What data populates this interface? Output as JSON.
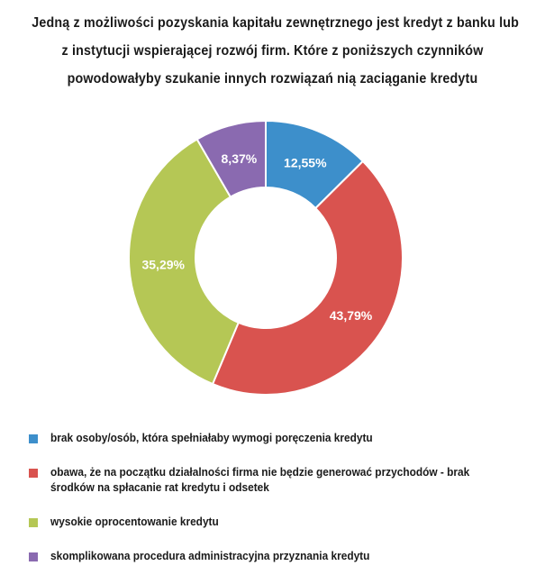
{
  "title_lines": [
    "Jedną z możliwości pozyskania kapitału zewnętrznego jest kredyt z banku lub",
    "z instytucji wspierającej rozwój firm. Które z poniższych czynników",
    "powodowałyby szukanie innych rozwiązań nią zaciąganie kredytu"
  ],
  "chart_data": {
    "type": "pie",
    "donut": true,
    "categories": [
      "brak osoby/osób, która spełniałaby wymogi poręczenia kredytu",
      "obawa, że na początku działalności firma nie będzie generować przychodów - brak środków na spłacanie rat kredytu i odsetek",
      "wysokie oprocentowanie kredytu",
      "skomplikowana procedura administracyjna przyznania kredytu"
    ],
    "values": [
      12.55,
      43.79,
      35.29,
      8.37
    ],
    "data_labels": [
      "12,55%",
      "43,79%",
      "35,29%",
      "8,37%"
    ],
    "colors": [
      "#3d8fcb",
      "#d9534f",
      "#b5c755",
      "#8a6ab0"
    ],
    "legend_position": "bottom"
  }
}
